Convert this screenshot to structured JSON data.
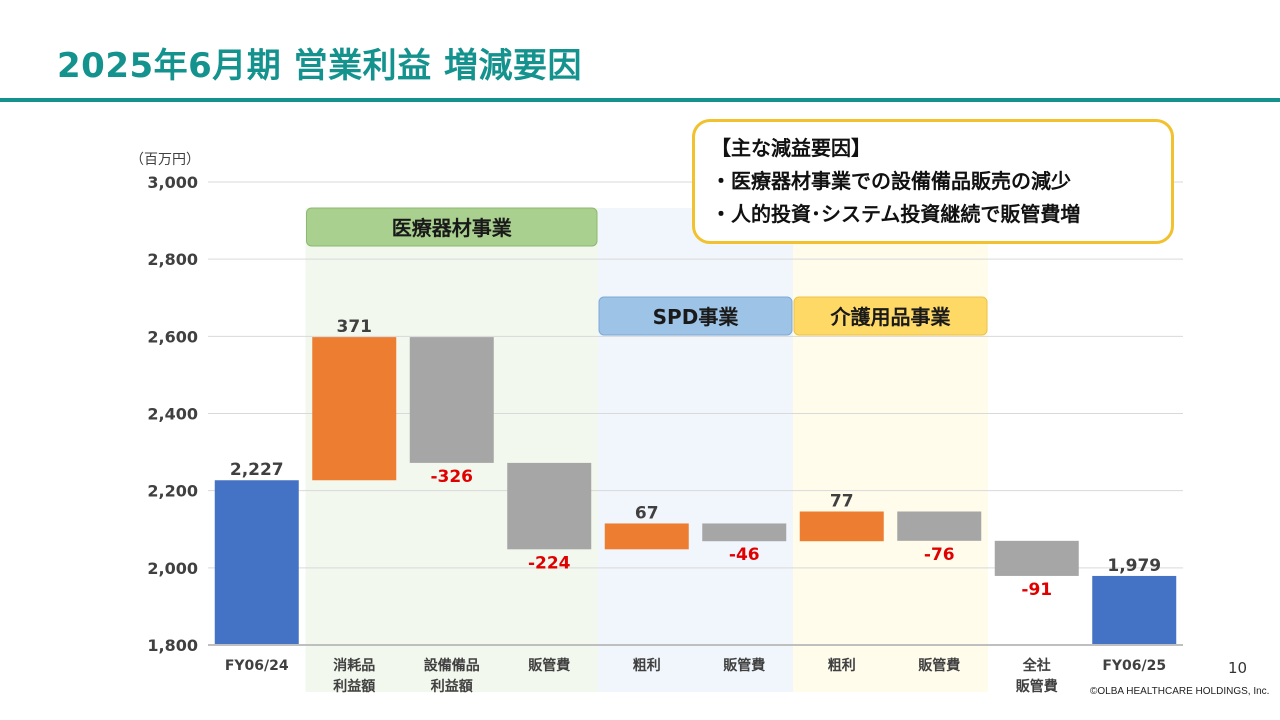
{
  "title": "2025年6月期 営業利益 増減要因",
  "callout": {
    "heading": "【主な減益要因】",
    "lines": [
      "・医療器材事業での設備備品販売の減少",
      "・人的投資･システム投資継続で販管費増"
    ],
    "border_color": "#F2C12E"
  },
  "page_number": "10",
  "copyright": "©OLBA HEALTHCARE HOLDINGS, Inc.",
  "colors": {
    "title": "#14928E",
    "total": "#4472C4",
    "increase": "#ED7D31",
    "decrease": "#A6A6A6",
    "negative_label": "#E00000"
  },
  "chart_data": {
    "type": "waterfall",
    "unit_label": "（百万円）",
    "ylim": [
      1800,
      3000
    ],
    "yticks": [
      "1,800",
      "2,000",
      "2,200",
      "2,400",
      "2,600",
      "2,800",
      "3,000"
    ],
    "ytick_values": [
      1800,
      2000,
      2200,
      2400,
      2600,
      2800,
      3000
    ],
    "grid": true,
    "categories": [
      [
        "FY06/24"
      ],
      [
        "消耗品",
        "利益額"
      ],
      [
        "設備備品",
        "利益額"
      ],
      [
        "販管費"
      ],
      [
        "粗利"
      ],
      [
        "販管費"
      ],
      [
        "粗利"
      ],
      [
        "販管費"
      ],
      [
        "全社",
        "販管費"
      ],
      [
        "FY06/25"
      ]
    ],
    "bars": [
      {
        "kind": "total",
        "start": 1800,
        "end": 2227,
        "label": "2,227"
      },
      {
        "kind": "increase",
        "start": 2227,
        "end": 2598,
        "label": "371"
      },
      {
        "kind": "decrease",
        "start": 2598,
        "end": 2272,
        "label": "-326"
      },
      {
        "kind": "decrease",
        "start": 2272,
        "end": 2048,
        "label": "-224"
      },
      {
        "kind": "increase",
        "start": 2048,
        "end": 2115,
        "label": "67"
      },
      {
        "kind": "decrease",
        "start": 2115,
        "end": 2069,
        "label": "-46"
      },
      {
        "kind": "increase",
        "start": 2069,
        "end": 2146,
        "label": "77"
      },
      {
        "kind": "decrease",
        "start": 2146,
        "end": 2070,
        "label": "-76"
      },
      {
        "kind": "decrease",
        "start": 2070,
        "end": 1979,
        "label": "-91"
      },
      {
        "kind": "total",
        "start": 1800,
        "end": 1979,
        "label": "1,979"
      }
    ],
    "segments": [
      {
        "name": "医療器材事業",
        "from": 1,
        "to": 3,
        "label_fill": "#A9D08E",
        "label_stroke": "#8DB870",
        "band_fill": "#F2F8EE"
      },
      {
        "name": "SPD事業",
        "from": 4,
        "to": 5,
        "label_fill": "#9DC3E6",
        "label_stroke": "#7FAAD4",
        "band_fill": "#F1F6FC"
      },
      {
        "name": "介護用品事業",
        "from": 6,
        "to": 7,
        "label_fill": "#FFD966",
        "label_stroke": "#E8C24A",
        "band_fill": "#FFFCEC"
      }
    ]
  }
}
